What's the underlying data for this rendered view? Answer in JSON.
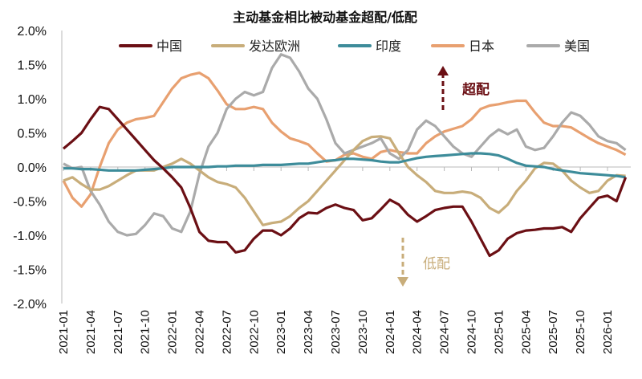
{
  "chart_data": {
    "type": "line",
    "title": "主动基金相比被动基金超配/低配",
    "xlabel": "",
    "ylabel": "",
    "ylim": [
      -2.0,
      2.0
    ],
    "y_tick_labels": [
      "2.0%",
      "1.5%",
      "1.0%",
      "0.5%",
      "0.0%",
      "-0.5%",
      "-1.0%",
      "-1.5%",
      "-2.0%"
    ],
    "y_ticks": [
      2.0,
      1.5,
      1.0,
      0.5,
      0.0,
      -0.5,
      -1.0,
      -1.5,
      -2.0
    ],
    "x_tick_labels": [
      "2021-01",
      "2021-04",
      "2021-07",
      "2021-10",
      "2022-01",
      "2022-04",
      "2022-07",
      "2022-10",
      "2023-01",
      "2023-04",
      "2023-07",
      "2023-10",
      "2024-01",
      "2024-04",
      "2024-07",
      "2024-10",
      "2025-01",
      "2025-04",
      "2025-07",
      "2025-10",
      "2026-01"
    ],
    "x_start": "2021-01",
    "x_end": "2026-03",
    "x_frequency": "monthly",
    "grid": false,
    "legend_position": "top",
    "series": [
      {
        "name": "中国",
        "color": "#6b0f14",
        "values": [
          0.27,
          0.38,
          0.5,
          0.7,
          0.88,
          0.85,
          0.7,
          0.55,
          0.4,
          0.25,
          0.1,
          -0.02,
          -0.15,
          -0.3,
          -0.6,
          -0.95,
          -1.08,
          -1.1,
          -1.1,
          -1.25,
          -1.22,
          -1.05,
          -0.93,
          -0.93,
          -1.0,
          -0.9,
          -0.75,
          -0.67,
          -0.68,
          -0.6,
          -0.55,
          -0.6,
          -0.63,
          -0.78,
          -0.75,
          -0.62,
          -0.48,
          -0.55,
          -0.7,
          -0.8,
          -0.72,
          -0.63,
          -0.6,
          -0.58,
          -0.58,
          -0.8,
          -1.05,
          -1.3,
          -1.22,
          -1.05,
          -0.97,
          -0.93,
          -0.92,
          -0.9,
          -0.9,
          -0.88,
          -0.95,
          -0.75,
          -0.6,
          -0.45,
          -0.42,
          -0.5,
          -0.15
        ]
      },
      {
        "name": "发达欧洲",
        "color": "#c8ad7a",
        "values": [
          -0.2,
          -0.15,
          -0.25,
          -0.33,
          -0.33,
          -0.28,
          -0.2,
          -0.12,
          -0.05,
          -0.05,
          -0.05,
          0.0,
          0.05,
          0.12,
          0.05,
          -0.05,
          -0.15,
          -0.22,
          -0.25,
          -0.3,
          -0.45,
          -0.65,
          -0.85,
          -0.82,
          -0.8,
          -0.72,
          -0.6,
          -0.5,
          -0.35,
          -0.2,
          -0.05,
          0.1,
          0.25,
          0.38,
          0.44,
          0.45,
          0.42,
          0.2,
          0.0,
          -0.12,
          -0.22,
          -0.35,
          -0.38,
          -0.38,
          -0.36,
          -0.38,
          -0.45,
          -0.6,
          -0.67,
          -0.55,
          -0.35,
          -0.2,
          -0.02,
          0.06,
          0.05,
          -0.05,
          -0.2,
          -0.3,
          -0.38,
          -0.35,
          -0.2,
          -0.12,
          -0.13
        ]
      },
      {
        "name": "印度",
        "color": "#3d8c9a",
        "values": [
          -0.02,
          -0.02,
          -0.03,
          -0.03,
          -0.04,
          -0.05,
          -0.05,
          -0.05,
          -0.05,
          -0.04,
          -0.03,
          -0.02,
          0.0,
          0.0,
          0.0,
          0.0,
          0.0,
          0.01,
          0.01,
          0.02,
          0.02,
          0.02,
          0.03,
          0.03,
          0.03,
          0.04,
          0.05,
          0.05,
          0.07,
          0.09,
          0.1,
          0.12,
          0.12,
          0.11,
          0.1,
          0.08,
          0.07,
          0.07,
          0.1,
          0.13,
          0.15,
          0.16,
          0.17,
          0.18,
          0.19,
          0.2,
          0.2,
          0.19,
          0.17,
          0.12,
          0.06,
          0.02,
          0.01,
          0.0,
          -0.03,
          -0.05,
          -0.07,
          -0.09,
          -0.1,
          -0.11,
          -0.12,
          -0.13,
          -0.15
        ]
      },
      {
        "name": "日本",
        "color": "#e8a070",
        "values": [
          -0.2,
          -0.45,
          -0.58,
          -0.4,
          0.0,
          0.35,
          0.55,
          0.65,
          0.7,
          0.72,
          0.75,
          0.95,
          1.15,
          1.3,
          1.35,
          1.38,
          1.3,
          1.12,
          0.92,
          0.85,
          0.85,
          0.88,
          0.85,
          0.65,
          0.52,
          0.42,
          0.38,
          0.33,
          0.2,
          0.08,
          0.1,
          0.18,
          0.2,
          0.15,
          0.12,
          0.22,
          0.25,
          0.22,
          0.2,
          0.2,
          0.35,
          0.45,
          0.52,
          0.56,
          0.6,
          0.7,
          0.85,
          0.9,
          0.92,
          0.95,
          0.97,
          0.97,
          0.8,
          0.65,
          0.6,
          0.6,
          0.58,
          0.5,
          0.42,
          0.35,
          0.3,
          0.25,
          0.18
        ]
      },
      {
        "name": "美国",
        "color": "#aaaaaa",
        "values": [
          0.05,
          -0.02,
          0.0,
          -0.35,
          -0.55,
          -0.8,
          -0.95,
          -1.0,
          -0.98,
          -0.85,
          -0.68,
          -0.72,
          -0.9,
          -0.95,
          -0.65,
          -0.1,
          0.3,
          0.5,
          0.85,
          1.0,
          1.1,
          1.05,
          1.1,
          1.45,
          1.65,
          1.6,
          1.4,
          1.15,
          1.0,
          0.7,
          0.35,
          0.2,
          0.25,
          0.3,
          0.35,
          0.42,
          0.2,
          0.12,
          0.25,
          0.55,
          0.68,
          0.6,
          0.45,
          0.3,
          0.2,
          0.15,
          0.3,
          0.45,
          0.55,
          0.48,
          0.55,
          0.3,
          0.25,
          0.28,
          0.45,
          0.65,
          0.8,
          0.75,
          0.62,
          0.45,
          0.38,
          0.35,
          0.25
        ]
      }
    ],
    "annotations": [
      {
        "text": "超配",
        "direction": "up",
        "color": "#6b0f14"
      },
      {
        "text": "低配",
        "direction": "down",
        "color": "#c8ad7a"
      }
    ]
  }
}
